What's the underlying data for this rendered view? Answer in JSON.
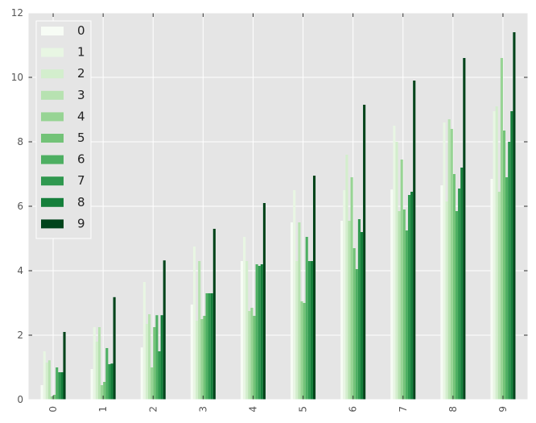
{
  "chart_data": {
    "type": "bar",
    "categories": [
      "0",
      "1",
      "2",
      "3",
      "4",
      "5",
      "6",
      "7",
      "8",
      "9"
    ],
    "ylim": [
      0,
      12
    ],
    "yticks": [
      0,
      2,
      4,
      6,
      8,
      10,
      12
    ],
    "grid": true,
    "legend_position": "top-left",
    "background": "#e5e5e5",
    "grid_color": "#ffffff",
    "series": [
      {
        "name": "0",
        "color": "#f7fcf5",
        "values": [
          0.45,
          0.95,
          1.62,
          2.95,
          4.3,
          5.5,
          5.55,
          6.52,
          6.65,
          6.85
        ]
      },
      {
        "name": "1",
        "color": "#e8f6e3",
        "values": [
          1.5,
          2.25,
          3.65,
          4.75,
          5.05,
          6.5,
          6.5,
          8.5,
          8.6,
          8.95
        ]
      },
      {
        "name": "2",
        "color": "#d3eecd",
        "values": [
          1.15,
          1.8,
          2.35,
          2.45,
          4.3,
          4.3,
          7.6,
          8.0,
          6.15,
          9.1
        ]
      },
      {
        "name": "3",
        "color": "#b7e2b1",
        "values": [
          1.22,
          2.25,
          2.65,
          4.3,
          2.75,
          5.5,
          5.55,
          5.85,
          8.7,
          6.45
        ]
      },
      {
        "name": "4",
        "color": "#97d494",
        "values": [
          0.1,
          0.45,
          1.0,
          2.5,
          2.85,
          3.05,
          6.9,
          7.45,
          8.4,
          10.6
        ]
      },
      {
        "name": "5",
        "color": "#73c378",
        "values": [
          0.15,
          0.55,
          2.25,
          2.6,
          2.6,
          3.0,
          4.7,
          5.9,
          7.0,
          8.35
        ]
      },
      {
        "name": "6",
        "color": "#4daf62",
        "values": [
          1.0,
          1.6,
          2.62,
          3.3,
          4.2,
          5.05,
          4.05,
          5.25,
          5.85,
          6.9
        ]
      },
      {
        "name": "7",
        "color": "#2f984f",
        "values": [
          0.85,
          1.1,
          1.5,
          3.3,
          4.15,
          4.3,
          5.6,
          6.35,
          6.55,
          8.0
        ]
      },
      {
        "name": "8",
        "color": "#157f3b",
        "values": [
          0.85,
          1.12,
          2.62,
          3.3,
          4.2,
          4.3,
          5.2,
          6.45,
          7.2,
          8.95
        ]
      },
      {
        "name": "9",
        "color": "#00441b",
        "values": [
          2.1,
          3.18,
          4.32,
          5.3,
          6.1,
          6.95,
          9.15,
          9.9,
          10.6,
          11.4
        ]
      }
    ]
  }
}
